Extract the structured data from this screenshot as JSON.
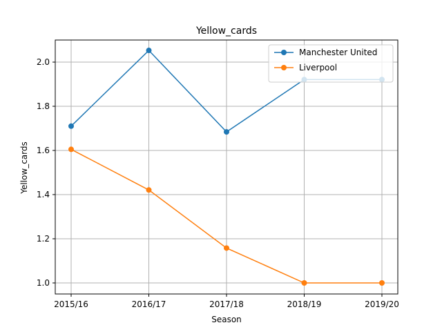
{
  "chart_data": {
    "type": "line",
    "title": "Yellow_cards",
    "xlabel": "Season",
    "ylabel": "Yellow_cards",
    "categories": [
      "2015/16",
      "2016/17",
      "2017/18",
      "2018/19",
      "2019/20"
    ],
    "ylim": [
      0.95,
      2.1
    ],
    "yticks": [
      1.0,
      1.2,
      1.4,
      1.6,
      1.8,
      2.0
    ],
    "ytick_labels": [
      "1.0",
      "1.2",
      "1.4",
      "1.6",
      "1.8",
      "2.0"
    ],
    "grid": true,
    "legend_position": "top-right",
    "series": [
      {
        "name": "Manchester United",
        "color": "#1f77b4",
        "values": [
          1.71,
          2.053,
          1.684,
          1.921,
          1.921
        ]
      },
      {
        "name": "Liverpool",
        "color": "#ff7f0e",
        "values": [
          1.605,
          1.421,
          1.158,
          1.0,
          1.0
        ]
      }
    ]
  }
}
